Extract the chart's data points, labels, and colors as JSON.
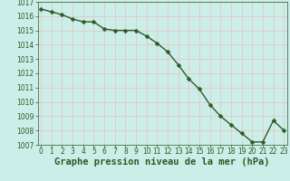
{
  "x": [
    0,
    1,
    2,
    3,
    4,
    5,
    6,
    7,
    8,
    9,
    10,
    11,
    12,
    13,
    14,
    15,
    16,
    17,
    18,
    19,
    20,
    21,
    22,
    23
  ],
  "y": [
    1016.5,
    1016.3,
    1016.1,
    1015.8,
    1015.6,
    1015.6,
    1015.1,
    1015.0,
    1015.0,
    1015.0,
    1014.6,
    1014.1,
    1013.5,
    1012.6,
    1011.6,
    1010.9,
    1009.8,
    1009.0,
    1008.4,
    1007.8,
    1007.2,
    1007.2,
    1008.7,
    1008.0
  ],
  "ylim": [
    1007,
    1017
  ],
  "xlim_min": -0.3,
  "xlim_max": 23.3,
  "yticks": [
    1007,
    1008,
    1009,
    1010,
    1011,
    1012,
    1013,
    1014,
    1015,
    1016,
    1017
  ],
  "xticks": [
    0,
    1,
    2,
    3,
    4,
    5,
    6,
    7,
    8,
    9,
    10,
    11,
    12,
    13,
    14,
    15,
    16,
    17,
    18,
    19,
    20,
    21,
    22,
    23
  ],
  "line_color": "#2d5a27",
  "marker_color": "#2d5a27",
  "bg_color": "#cceee8",
  "grid_color_major": "#e8c0c0",
  "grid_color_minor": "#cce0dc",
  "xlabel": "Graphe pression niveau de la mer (hPa)",
  "xlabel_color": "#2d5a27",
  "tick_color": "#2d5a27",
  "tick_fontsize": 5.5,
  "xlabel_fontsize": 7.5,
  "marker_size": 2.5,
  "line_width": 1.0
}
